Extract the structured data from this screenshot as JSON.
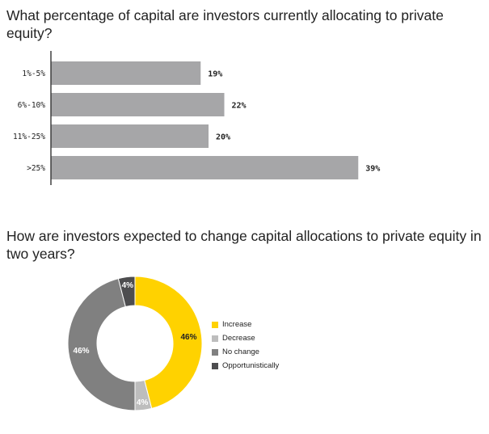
{
  "chart_data": [
    {
      "type": "bar",
      "orientation": "horizontal",
      "title": "What percentage of capital are investors currently allocating to private equity?",
      "categories": [
        "1%-5%",
        "6%-10%",
        "11%-25%",
        ">25%"
      ],
      "values": [
        19,
        22,
        20,
        39
      ],
      "value_labels": [
        "19%",
        "22%",
        "20%",
        "39%"
      ],
      "xlim": [
        0,
        40
      ],
      "grid": false,
      "bar_color": "#a6a6a8"
    },
    {
      "type": "pie",
      "donut": true,
      "title": "How are investors expected to change capital allocations to private equity in two years?",
      "legend_position": "right",
      "slices": [
        {
          "name": "Increase",
          "value": 46,
          "label": "46%",
          "color": "#ffd200",
          "label_color": "#222222"
        },
        {
          "name": "Decrease",
          "value": 4,
          "label": "4%",
          "color": "#bdbdbd",
          "label_color": "#ffffff"
        },
        {
          "name": "No change",
          "value": 46,
          "label": "46%",
          "color": "#808080",
          "label_color": "#ffffff"
        },
        {
          "name": "Opportunistically",
          "value": 4,
          "label": "4%",
          "color": "#4d4d4f",
          "label_color": "#ffffff"
        }
      ]
    }
  ]
}
